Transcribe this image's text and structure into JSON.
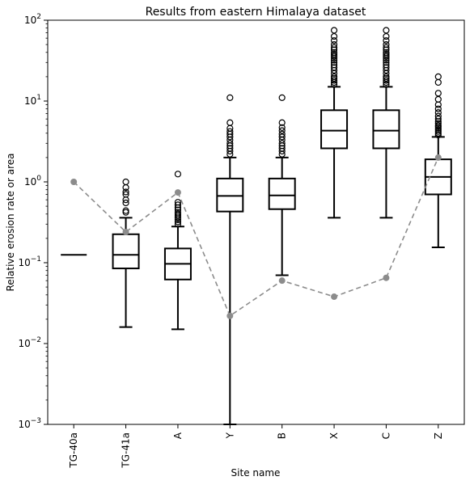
{
  "chart_data": {
    "type": "boxplot",
    "title": "Results from eastern Himalaya dataset",
    "xlabel": "Site name",
    "ylabel": "Relative erosion rate or area",
    "yscale": "log",
    "ylim": [
      0.001,
      100
    ],
    "y_ticks": [
      {
        "value": 0.001,
        "base": "10",
        "exp": "−3"
      },
      {
        "value": 0.01,
        "base": "10",
        "exp": "−2"
      },
      {
        "value": 0.1,
        "base": "10",
        "exp": "−1"
      },
      {
        "value": 1,
        "base": "10",
        "exp": "0"
      },
      {
        "value": 10,
        "base": "10",
        "exp": "1"
      },
      {
        "value": 100,
        "base": "10",
        "exp": "2"
      }
    ],
    "categories": [
      "TG-40a",
      "TG-41a",
      "A",
      "Y",
      "B",
      "X",
      "C",
      "Z"
    ],
    "boxes": [
      {
        "label": "TG-40a",
        "whislo": 0.125,
        "q1": 0.125,
        "med": 0.125,
        "q3": 0.125,
        "whishi": 0.125,
        "fliers": []
      },
      {
        "label": "TG-41a",
        "whislo": 0.016,
        "q1": 0.085,
        "med": 0.125,
        "q3": 0.225,
        "whishi": 0.36,
        "fliers": [
          0.42,
          0.44,
          0.55,
          0.6,
          0.7,
          0.75,
          0.85,
          1.0
        ]
      },
      {
        "label": "A",
        "whislo": 0.015,
        "q1": 0.062,
        "med": 0.097,
        "q3": 0.15,
        "whishi": 0.28,
        "fliers": [
          0.3,
          0.32,
          0.34,
          0.36,
          0.38,
          0.4,
          0.42,
          0.45,
          0.48,
          0.52,
          0.56,
          1.25
        ]
      },
      {
        "label": "Y",
        "whislo": 0.001,
        "q1": 0.43,
        "med": 0.67,
        "q3": 1.1,
        "whishi": 2.0,
        "fliers": [
          2.2,
          2.4,
          2.6,
          2.8,
          3.0,
          3.3,
          3.6,
          3.9,
          4.2,
          4.6,
          5.4,
          11.0
        ]
      },
      {
        "label": "B",
        "whislo": 0.07,
        "q1": 0.46,
        "med": 0.68,
        "q3": 1.1,
        "whishi": 2.0,
        "fliers": [
          2.2,
          2.4,
          2.6,
          2.8,
          3.0,
          3.3,
          3.6,
          3.9,
          4.3,
          4.7,
          5.4,
          11.0
        ]
      },
      {
        "label": "X",
        "whislo": 0.36,
        "q1": 2.6,
        "med": 4.3,
        "q3": 7.7,
        "whishi": 15.0,
        "fliers": [
          16,
          17,
          18,
          19,
          20,
          22,
          24,
          26,
          28,
          30,
          32,
          34,
          36,
          38,
          40,
          43,
          46,
          50,
          56,
          63,
          75
        ]
      },
      {
        "label": "C",
        "whislo": 0.36,
        "q1": 2.6,
        "med": 4.3,
        "q3": 7.7,
        "whishi": 15.0,
        "fliers": [
          16,
          17,
          18,
          19,
          20,
          22,
          24,
          26,
          28,
          30,
          32,
          34,
          36,
          38,
          40,
          43,
          46,
          50,
          56,
          63,
          75
        ]
      },
      {
        "label": "Z",
        "whislo": 0.155,
        "q1": 0.7,
        "med": 1.15,
        "q3": 1.9,
        "whishi": 3.6,
        "fliers": [
          3.8,
          4.0,
          4.2,
          4.4,
          4.6,
          4.8,
          5.0,
          5.3,
          5.6,
          6.0,
          6.5,
          7.2,
          8.0,
          9.0,
          10.5,
          12.5,
          17.0,
          20.0
        ]
      }
    ],
    "series": [
      {
        "style": "dashed-gray-dots",
        "color": "#8c8c8c",
        "values": [
          1.0,
          0.24,
          0.74,
          0.022,
          0.06,
          0.038,
          0.065,
          2.0
        ]
      }
    ],
    "grid": false,
    "legend": "none"
  }
}
